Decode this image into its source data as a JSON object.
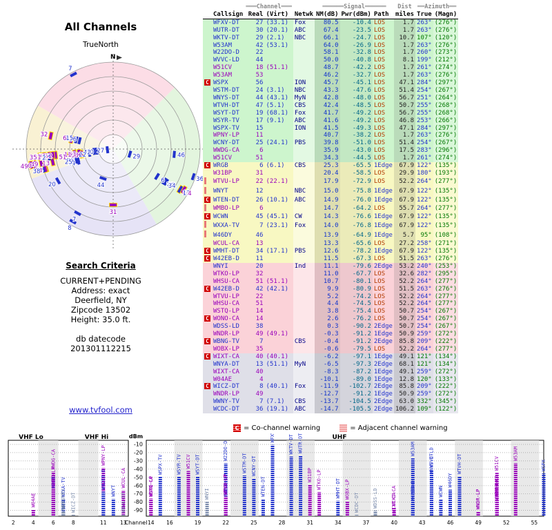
{
  "radar": {
    "title": "All Channels",
    "north_label": "TrueNorth",
    "n_label": "N"
  },
  "criteria": {
    "title": "Search Criteria",
    "lines": [
      "CURRENT+PENDING",
      "Address: exact",
      "Deerfield, NY",
      "Zipcode 13502",
      "Height: 35.0 ft."
    ],
    "db_label": "db datecode",
    "db_value": "201301112215",
    "link": "www.tvfool.com"
  },
  "legend": {
    "co_icon": "C",
    "co": "= Co-channel warning",
    "adj": "= Adjacent channel warning"
  },
  "bottom_axis": {
    "dbm_label": "dBm",
    "channel_label": "Channel",
    "vhf_lo": "VHF Lo",
    "vhf_hi": "VHF Hi",
    "uhf": "UHF",
    "yticks": [
      -10,
      -20,
      -30,
      -40,
      -50,
      -60,
      -70,
      -80,
      -90
    ],
    "vhf_ticks": [
      2,
      4,
      6,
      8,
      11,
      13
    ],
    "uhf_ticks": [
      14,
      16,
      19,
      22,
      25,
      28,
      31,
      34,
      37,
      40,
      43,
      46,
      49,
      52,
      55
    ]
  },
  "colors": {
    "blue": "#2233cc",
    "purple": "#9900bb",
    "netwk": "#000088",
    "nm": "#1133cc",
    "pwr": "#006688",
    "los": "#b33a00",
    "edge": "#2233cc",
    "dist": "#222222",
    "magn": "#007700",
    "true_blue": "#2233cc",
    "true_green": "#007700",
    "halo": "#ffe000"
  },
  "table": {
    "groups": {
      "channel": "═══Channel═══",
      "signal": "══════Signal══════",
      "dist": "Dist",
      "azimuth": "══Azimuth══"
    },
    "columns": [
      "Callsign",
      "Real",
      "(Virt)",
      "Netwk",
      "NM(dB)",
      "Pwr(dBm)",
      "Path",
      "miles",
      "True",
      "(Magn)"
    ],
    "rows": [
      [
        "",
        "b",
        "WFXV-DT",
        27,
        "(33.1)",
        "Fox",
        80.5,
        -10.4,
        "LOS",
        1.7,
        "263°",
        "(276°)",
        "g",
        0
      ],
      [
        "",
        "b",
        "WUTR-DT",
        30,
        "(20.1)",
        "ABC",
        67.4,
        -23.5,
        "LOS",
        1.7,
        "263°",
        "(276°)",
        "g",
        0
      ],
      [
        "",
        "b",
        "WKTV-DT",
        29,
        "(2.1)",
        "NBC",
        66.1,
        -24.7,
        "LOS",
        10.7,
        "107°",
        "(120°)",
        "g",
        1
      ],
      [
        "",
        "b",
        "W53AM",
        42,
        "(53.1)",
        "",
        64.0,
        -26.9,
        "LOS",
        1.7,
        "263°",
        "(276°)",
        "g",
        0
      ],
      [
        "",
        "b",
        "W22DO-D",
        22,
        "",
        "",
        58.1,
        -32.8,
        "LOS",
        1.7,
        "260°",
        "(273°)",
        "g",
        0
      ],
      [
        "",
        "b",
        "WVVC-LD",
        44,
        "",
        "",
        50.0,
        -40.8,
        "LOS",
        8.1,
        "199°",
        "(212°)",
        "g",
        0
      ],
      [
        "",
        "p",
        "W51CV",
        18,
        "(51.1)",
        "",
        48.7,
        -42.2,
        "LOS",
        1.7,
        "261°",
        "(274°)",
        "g",
        0
      ],
      [
        "",
        "p",
        "W53AM",
        53,
        "",
        "",
        46.2,
        -32.7,
        "LOS",
        1.7,
        "263°",
        "(276°)",
        "g",
        0
      ],
      [
        "C",
        "b",
        "WSPX",
        56,
        "",
        "ION",
        45.7,
        -45.1,
        "LOS",
        47.1,
        "284°",
        "(297°)",
        "g",
        0
      ],
      [
        "",
        "b",
        "WSTM-DT",
        24,
        "(3.1)",
        "NBC",
        43.3,
        -47.6,
        "LOS",
        51.4,
        "254°",
        "(267°)",
        "g",
        0
      ],
      [
        "",
        "b",
        "WNYS-DT",
        44,
        "(43.1)",
        "MyN",
        42.8,
        -48.0,
        "LOS",
        56.7,
        "251°",
        "(264°)",
        "g",
        0
      ],
      [
        "",
        "b",
        "WTVH-DT",
        47,
        "(5.1)",
        "CBS",
        42.4,
        -48.5,
        "LOS",
        50.7,
        "255°",
        "(268°)",
        "g",
        0
      ],
      [
        "",
        "b",
        "WSYT-DT",
        19,
        "(68.1)",
        "Fox",
        41.7,
        -49.2,
        "LOS",
        56.7,
        "255°",
        "(268°)",
        "g",
        0
      ],
      [
        "",
        "b",
        "WSYR-TV",
        17,
        "(9.1)",
        "ABC",
        41.6,
        -49.2,
        "LOS",
        46.8,
        "253°",
        "(266°)",
        "g",
        0
      ],
      [
        "",
        "b",
        "WSPX-TV",
        15,
        "",
        "ION",
        41.5,
        -49.3,
        "LOS",
        47.1,
        "284°",
        "(297°)",
        "g",
        0
      ],
      [
        "",
        "p",
        "WPNY-LP",
        11,
        "",
        "",
        40.7,
        -38.2,
        "LOS",
        1.7,
        "263°",
        "(276°)",
        "g",
        0
      ],
      [
        "",
        "b",
        "WCNY-DT",
        25,
        "(24.1)",
        "PBS",
        39.8,
        -51.0,
        "LOS",
        51.4,
        "254°",
        "(267°)",
        "g",
        0
      ],
      [
        "",
        "p",
        "WWDG-CA",
        6,
        "",
        "",
        35.9,
        -43.0,
        "LOS",
        17.5,
        "283°",
        "(296°)",
        "g",
        0
      ],
      [
        "",
        "p",
        "W51CV",
        51,
        "",
        "",
        34.3,
        -44.5,
        "LOS",
        1.7,
        "261°",
        "(274°)",
        "g",
        0
      ],
      [
        "C",
        "b",
        "WRGB",
        6,
        "(6.1)",
        "CBS",
        25.3,
        -65.5,
        "1Edge",
        67.9,
        "122°",
        "(135°)",
        "y",
        0
      ],
      [
        "",
        "p",
        "W31BP",
        31,
        "",
        "",
        20.4,
        -58.5,
        "LOS",
        29.9,
        "180°",
        "(193°)",
        "y",
        0
      ],
      [
        "A",
        "p",
        "WTVU-LP",
        22,
        "(22.1)",
        "",
        17.9,
        -72.9,
        "LOS",
        52.2,
        "264°",
        "(277°)",
        "y",
        0
      ],
      [
        "A",
        "b",
        "WNYT",
        12,
        "",
        "NBC",
        15.0,
        -75.8,
        "1Edge",
        67.9,
        "122°",
        "(135°)",
        "y",
        0
      ],
      [
        "C",
        "b",
        "WTEN-DT",
        26,
        "(10.1)",
        "ABC",
        14.9,
        -76.0,
        "1Edge",
        67.9,
        "122°",
        "(135°)",
        "y",
        0
      ],
      [
        "A",
        "p",
        "WMBO-LP",
        6,
        "",
        "",
        14.7,
        -64.2,
        "LOS",
        55.7,
        "264°",
        "(277°)",
        "y",
        0
      ],
      [
        "C",
        "b",
        "WCWN",
        45,
        "(45.1)",
        "CW",
        14.3,
        -76.6,
        "1Edge",
        67.9,
        "122°",
        "(135°)",
        "y",
        0
      ],
      [
        "A",
        "b",
        "WXXA-TV",
        7,
        "(23.1)",
        "Fox",
        14.0,
        -76.8,
        "1Edge",
        67.9,
        "122°",
        "(135°)",
        "y",
        0
      ],
      [
        "A",
        "b",
        "W46DY",
        46,
        "",
        "",
        13.9,
        -64.9,
        "1Edge",
        5.7,
        "95°",
        "(108°)",
        "y",
        1
      ],
      [
        "",
        "p",
        "WCUL-CA",
        13,
        "",
        "",
        13.3,
        -65.6,
        "LOS",
        27.2,
        "258°",
        "(271°)",
        "y",
        0
      ],
      [
        "C",
        "b",
        "WMHT-DT",
        34,
        "(17.1)",
        "PBS",
        12.6,
        -78.2,
        "1Edge",
        67.9,
        "122°",
        "(135°)",
        "y",
        0
      ],
      [
        "C",
        "b",
        "W42EB-D",
        11,
        "",
        "",
        11.5,
        -67.3,
        "LOS",
        51.5,
        "263°",
        "(276°)",
        "y",
        0
      ],
      [
        "",
        "b",
        "WNYI",
        20,
        "",
        "Ind",
        11.1,
        -79.6,
        "2Edge",
        53.2,
        "240°",
        "(253°)",
        "p",
        0
      ],
      [
        "",
        "p",
        "WTKO-LP",
        32,
        "",
        "",
        11.0,
        -67.7,
        "LOS",
        32.6,
        "282°",
        "(295°)",
        "p",
        0
      ],
      [
        "",
        "p",
        "WHSU-CA",
        51,
        "(51.1)",
        "",
        10.7,
        -80.1,
        "LOS",
        52.2,
        "264°",
        "(277°)",
        "p",
        0
      ],
      [
        "C",
        "b",
        "W42EB-D",
        42,
        "(42.1)",
        "",
        9.9,
        -80.9,
        "LOS",
        51.5,
        "263°",
        "(276°)",
        "p",
        0
      ],
      [
        "",
        "p",
        "WTVU-LP",
        22,
        "",
        "",
        5.2,
        -74.2,
        "LOS",
        52.2,
        "264°",
        "(277°)",
        "p",
        0
      ],
      [
        "",
        "p",
        "WHSU-CA",
        51,
        "",
        "",
        4.4,
        -74.5,
        "LOS",
        52.2,
        "264°",
        "(277°)",
        "p",
        0
      ],
      [
        "",
        "p",
        "WSTQ-LP",
        14,
        "",
        "",
        3.8,
        -75.4,
        "LOS",
        50.7,
        "254°",
        "(267°)",
        "p",
        0
      ],
      [
        "C",
        "p",
        "WONO-CA",
        14,
        "",
        "",
        2.6,
        -76.2,
        "LOS",
        50.7,
        "254°",
        "(267°)",
        "p",
        0
      ],
      [
        "",
        "b",
        "WDSS-LD",
        38,
        "",
        "",
        0.3,
        -90.2,
        "2Edge",
        50.7,
        "254°",
        "(267°)",
        "p",
        0
      ],
      [
        "",
        "p",
        "WNDR-LP",
        49,
        "(49.1)",
        "",
        -0.3,
        -91.2,
        "1Edge",
        50.9,
        "259°",
        "(272°)",
        "p",
        0
      ],
      [
        "C",
        "b",
        "WBNG-TV",
        7,
        "",
        "CBS",
        -0.4,
        -91.2,
        "2Edge",
        85.8,
        "209°",
        "(222°)",
        "p",
        0
      ],
      [
        "",
        "p",
        "WOBX-LP",
        35,
        "",
        "",
        -0.6,
        -79.5,
        "LOS",
        52.2,
        "264°",
        "(277°)",
        "p",
        0
      ],
      [
        "C",
        "p",
        "WIXT-CA",
        40,
        "(40.1)",
        "",
        -6.2,
        -97.1,
        "1Edge",
        49.1,
        "121°",
        "(134°)",
        "x",
        1
      ],
      [
        "",
        "b",
        "WNYA-DT",
        13,
        "(51.1)",
        "MyN",
        -6.5,
        -97.3,
        "2Edge",
        68.1,
        "121°",
        "(134°)",
        "x",
        1
      ],
      [
        "",
        "p",
        "WIXT-CA",
        40,
        "",
        "",
        -8.3,
        -87.2,
        "1Edge",
        49.1,
        "259°",
        "(272°)",
        "x",
        0
      ],
      [
        "",
        "p",
        "W04AE",
        4,
        "",
        "",
        -10.1,
        -89.0,
        "1Edge",
        12.8,
        "120°",
        "(133°)",
        "x",
        1
      ],
      [
        "C",
        "b",
        "WICZ-DT",
        8,
        "(40.1)",
        "Fox",
        -11.9,
        -102.7,
        "2Edge",
        85.8,
        "209°",
        "(222°)",
        "x",
        0
      ],
      [
        "",
        "p",
        "WNDR-LP",
        49,
        "",
        "",
        -12.7,
        -91.2,
        "1Edge",
        50.9,
        "259°",
        "(272°)",
        "x",
        0
      ],
      [
        "",
        "b",
        "WWNY-TV",
        7,
        "(7.1)",
        "CBS",
        -13.7,
        -104.5,
        "2Edge",
        63.0,
        "332°",
        "(345°)",
        "x",
        1
      ],
      [
        "",
        "b",
        "WCDC-DT",
        36,
        "(19.1)",
        "ABC",
        -14.7,
        -105.5,
        "2Edge",
        106.2,
        "109°",
        "(122°)",
        "x",
        1
      ]
    ]
  }
}
